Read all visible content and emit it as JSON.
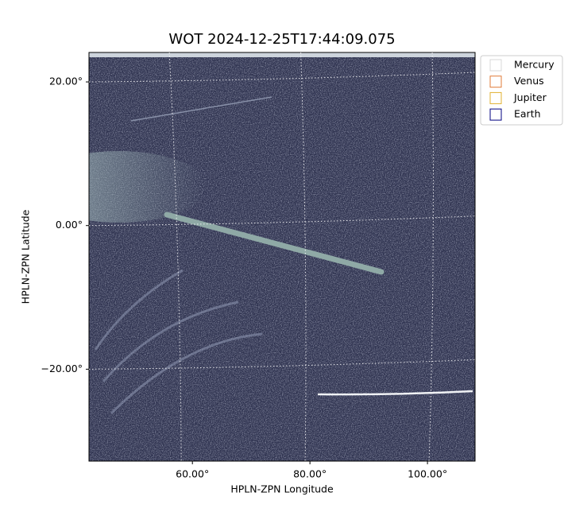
{
  "chart_data": {
    "type": "image",
    "title": "WOT 2024-12-25T17:44:09.075",
    "x_label": "HPLN-ZPN Longitude",
    "y_label": "HPLN-ZPN Latitude",
    "xlim": [
      42.4,
      108.1
    ],
    "ylim": [
      -32.8,
      24.1
    ],
    "xticks": [
      {
        "value": 60,
        "label": "60.00°"
      },
      {
        "value": 80,
        "label": "80.00°"
      },
      {
        "value": 100,
        "label": "100.00°"
      }
    ],
    "yticks": [
      {
        "value": 20,
        "label": "20.00°"
      },
      {
        "value": 0,
        "label": "0.00°"
      },
      {
        "value": -20,
        "label": "−20.00°"
      }
    ],
    "grid": true,
    "series": [
      {
        "name": "Mercury",
        "color": "#d9d9d9"
      },
      {
        "name": "Venus",
        "color": "#e07b39"
      },
      {
        "name": "Jupiter",
        "color": "#e0b030"
      },
      {
        "name": "Earth",
        "color": "#000080"
      }
    ]
  }
}
